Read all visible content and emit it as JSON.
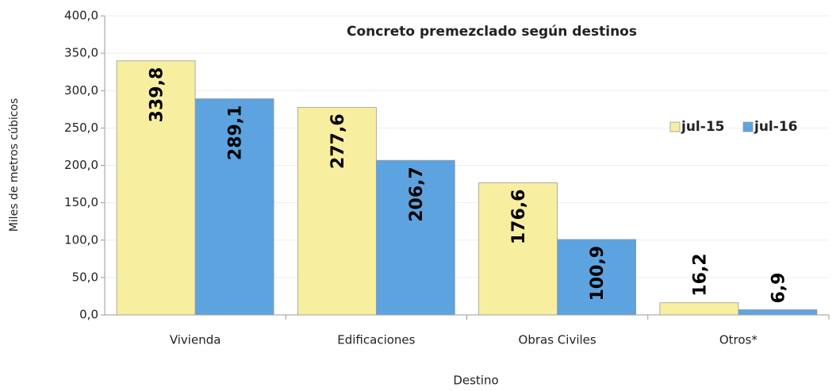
{
  "chart_data": {
    "type": "bar",
    "title": "Concreto premezclado según destinos",
    "xlabel": "Destino",
    "ylabel": "Miles de metros cúbicos",
    "categories": [
      "Vivienda",
      "Edificaciones",
      "Obras Civiles",
      "Otros*"
    ],
    "series": [
      {
        "name": "jul-15",
        "color": "#f8eea0",
        "values": [
          339.8,
          277.6,
          176.6,
          16.2
        ],
        "value_labels": [
          "339,8",
          "277,6",
          "176,6",
          "16,2"
        ]
      },
      {
        "name": "jul-16",
        "color": "#5da3e0",
        "values": [
          289.1,
          206.7,
          100.9,
          6.9
        ],
        "value_labels": [
          "289,1",
          "206,7",
          "100,9",
          "6,9"
        ]
      }
    ],
    "ylim": [
      0,
      400
    ],
    "yticks": [
      {
        "value": 0,
        "label": "0,0"
      },
      {
        "value": 50,
        "label": "50,0"
      },
      {
        "value": 100,
        "label": "100,0"
      },
      {
        "value": 150,
        "label": "150,0"
      },
      {
        "value": 200,
        "label": "200,0"
      },
      {
        "value": 250,
        "label": "250,0"
      },
      {
        "value": 300,
        "label": "300,0"
      },
      {
        "value": 350,
        "label": "350,0"
      },
      {
        "value": 400,
        "label": "400,0"
      }
    ],
    "grid": true,
    "legend": "right"
  }
}
